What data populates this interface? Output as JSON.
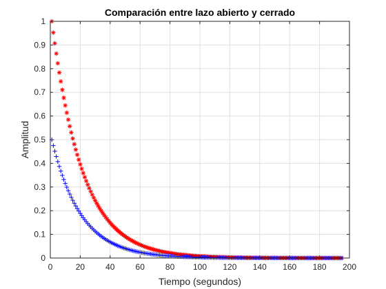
{
  "chart_data": {
    "type": "scatter",
    "title": "Comparación entre lazo abierto y cerrado",
    "xlabel": "Tiempo (segundos)",
    "ylabel": "Amplitud",
    "xlim": [
      0,
      200
    ],
    "ylim": [
      0,
      1
    ],
    "xticks": [
      0,
      20,
      40,
      60,
      80,
      100,
      120,
      140,
      160,
      180,
      200
    ],
    "yticks": [
      0,
      0.1,
      0.2,
      0.3,
      0.4,
      0.5,
      0.6,
      0.7,
      0.8,
      0.9,
      1
    ],
    "grid": true,
    "legend": "none",
    "series": [
      {
        "marker": "asterisk",
        "color": "#ff0000",
        "x_start": 1,
        "x_end": 195,
        "x_step": 1,
        "initial_value": 1.0,
        "decay_rate": 0.0488
      },
      {
        "marker": "plus",
        "color": "#0000ff",
        "x_start": 1,
        "x_end": 195,
        "x_step": 1,
        "initial_value": 0.5,
        "decay_rate": 0.0513
      }
    ]
  }
}
